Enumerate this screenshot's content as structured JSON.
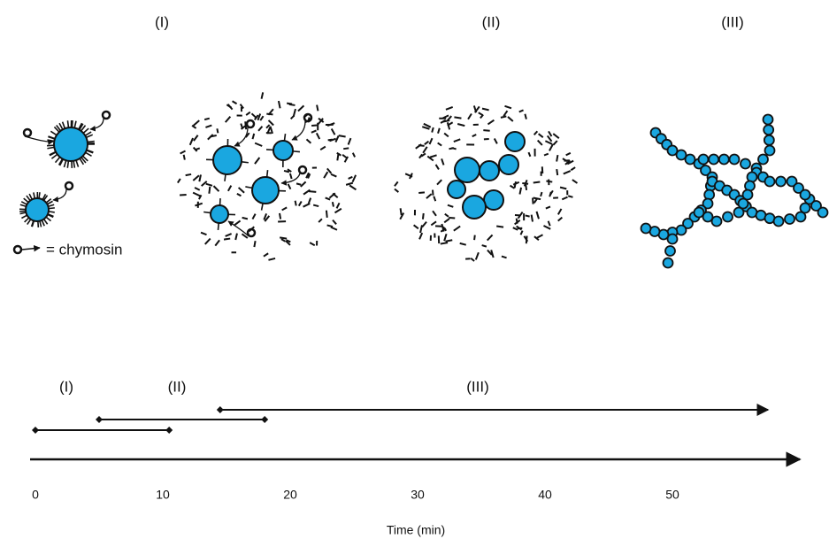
{
  "stages": [
    "(I)",
    "(II)",
    "(III)"
  ],
  "legend": "= chymosin",
  "timeline": {
    "xlim": [
      0,
      60
    ],
    "ticks": [
      0,
      10,
      20,
      30,
      40,
      50
    ],
    "axis_label": "Time (min)",
    "phases": [
      {
        "label": "(I)",
        "start": 0,
        "end": 10.5
      },
      {
        "label": "(II)",
        "start": 5,
        "end": 18
      },
      {
        "label": "(III)",
        "start": 14.5,
        "end": 57.5
      }
    ]
  }
}
